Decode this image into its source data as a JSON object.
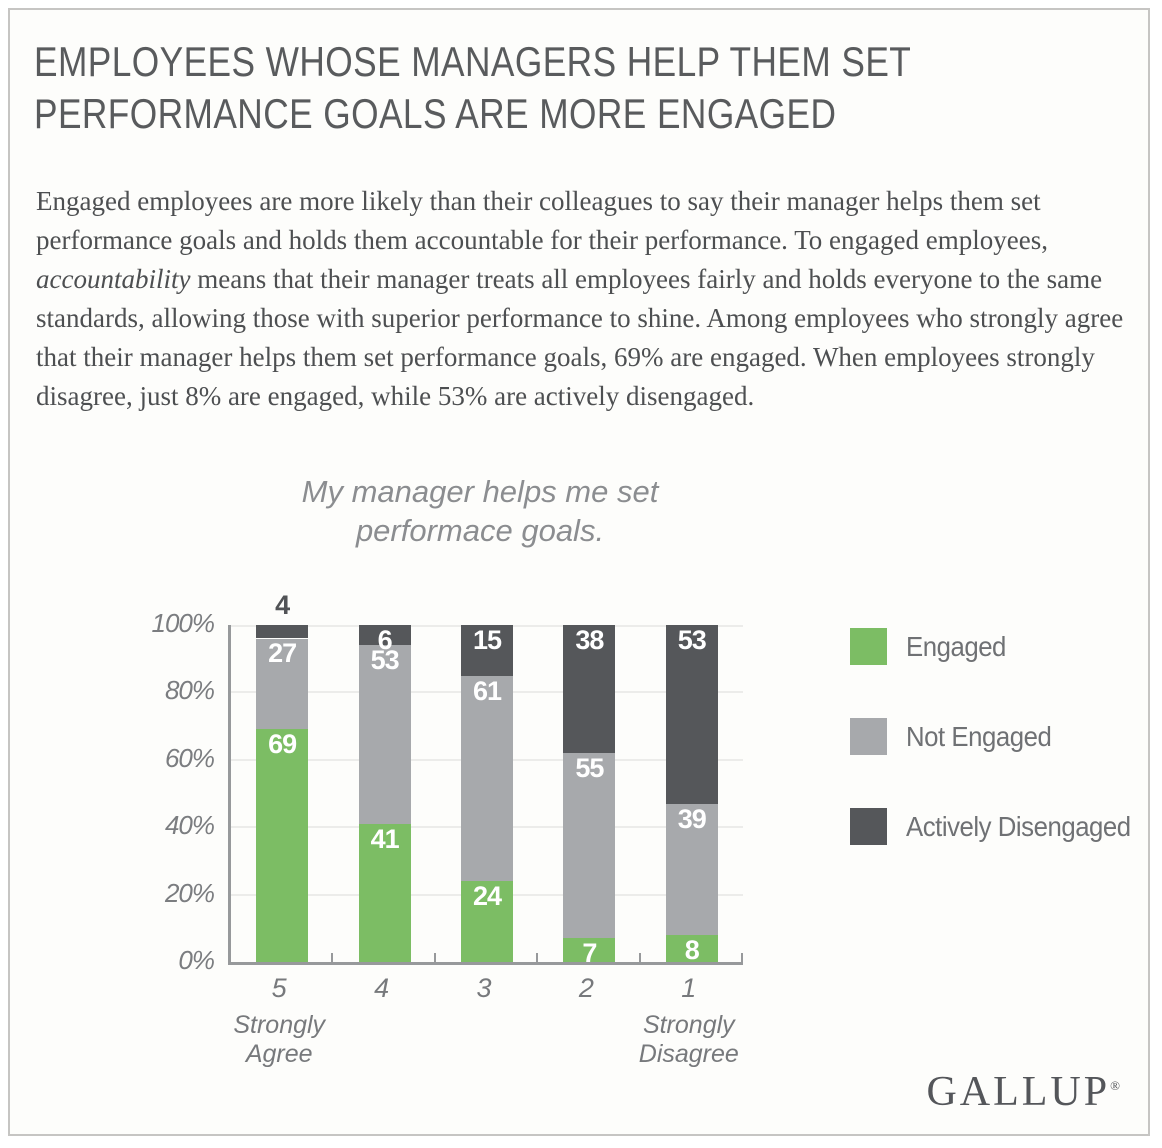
{
  "page": {
    "title": "EMPLOYEES WHOSE MANAGERS HELP THEM SET PERFORMANCE GOALS ARE MORE ENGAGED",
    "body_part1": "Engaged employees are more likely than their colleagues to say their manager helps them set performance goals and holds them accountable for their performance. To engaged employees, ",
    "body_italic": "accountability",
    "body_part2": " means that their manager treats all employees fairly and holds everyone to the same standards, allowing those with superior performance to shine. Among employees who strongly agree that their manager helps them set performance goals, 69% are engaged. When employees strongly disagree, just 8% are engaged, while 53% are actively disengaged.",
    "logo_text": "GALLUP",
    "logo_mark": "®"
  },
  "chart_data": {
    "type": "bar",
    "stacked": true,
    "title": "My manager helps me set\nperformace goals.",
    "categories": [
      "5",
      "4",
      "3",
      "2",
      "1"
    ],
    "category_sublabels": [
      "Strongly\nAgree",
      "",
      "",
      "",
      "Strongly\nDisagree"
    ],
    "series": [
      {
        "name": "Engaged",
        "color": "#7cbd64",
        "values": [
          69,
          41,
          24,
          7,
          8
        ]
      },
      {
        "name": "Not Engaged",
        "color": "#a7a9ac",
        "values": [
          27,
          53,
          61,
          55,
          39
        ]
      },
      {
        "name": "Actively Disengaged",
        "color": "#55575a",
        "values": [
          4,
          6,
          15,
          38,
          53
        ]
      }
    ],
    "ytick_labels": [
      "0%",
      "20%",
      "40%",
      "60%",
      "80%",
      "100%"
    ],
    "ylim": [
      0,
      100
    ],
    "grid": true,
    "legend_position": "right",
    "value_label_style": "white bold at top of each segment; top label drawn above bar when segment too small"
  },
  "colors": {
    "engaged_green": "#7cbd64",
    "not_engaged_gray": "#a7a9ac",
    "actively_disengaged_dark": "#55575a",
    "axis": "#97999b",
    "heading_text": "#595b5d",
    "body_text": "#4d4f51",
    "frame_border": "#c6c5c3"
  }
}
